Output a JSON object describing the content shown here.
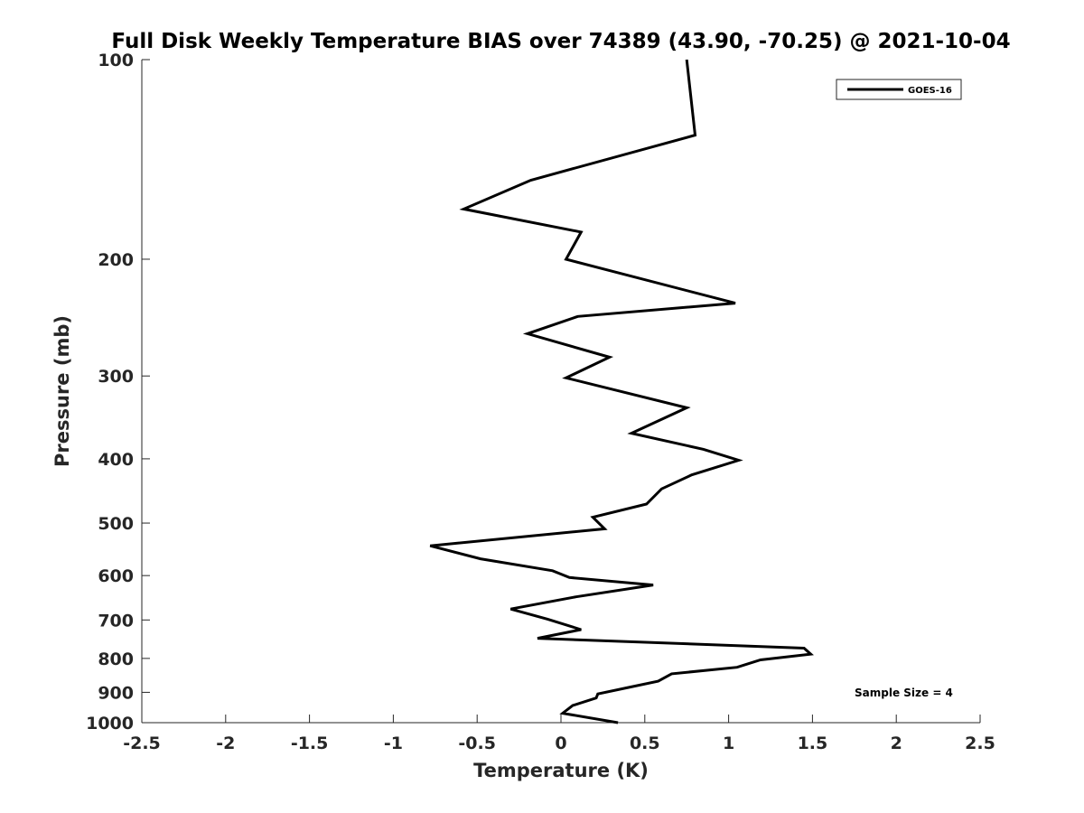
{
  "chart_data": {
    "type": "line",
    "title": "Full Disk Weekly Temperature BIAS over 74389 (43.90, -70.25) @ 2021-10-04",
    "xlabel": "Temperature (K)",
    "ylabel": "Pressure (mb)",
    "xlim": [
      -2.5,
      2.5
    ],
    "ylim": [
      100,
      1000
    ],
    "y_scale": "log",
    "y_reversed": true,
    "xticks": [
      "-2.5",
      "-2",
      "-1.5",
      "-1",
      "-0.5",
      "0",
      "0.5",
      "1",
      "1.5",
      "2",
      "2.5"
    ],
    "yticks": [
      "100",
      "200",
      "300",
      "400",
      "500",
      "600",
      "700",
      "800",
      "900",
      "1000"
    ],
    "grid": false,
    "legend_position": "top-right",
    "series": [
      {
        "name": "GOES-16",
        "color": "#000000",
        "x": [
          0.75,
          0.8,
          -0.18,
          -0.58,
          0.12,
          0.03,
          1.04,
          0.1,
          -0.2,
          0.29,
          0.03,
          0.75,
          0.42,
          0.85,
          1.06,
          0.78,
          0.6,
          0.51,
          0.19,
          0.26,
          -0.78,
          -0.48,
          -0.05,
          0.05,
          0.55,
          0.09,
          -0.3,
          -0.08,
          0.12,
          -0.14,
          1.45,
          1.49,
          1.19,
          1.05,
          0.66,
          0.58,
          0.4,
          0.22,
          0.21,
          0.07,
          0.01,
          0.34
        ],
        "y": [
          100,
          130,
          152,
          168,
          182,
          200,
          233,
          244,
          259,
          281,
          302,
          335,
          366,
          387,
          402,
          423,
          444,
          468,
          490,
          510,
          541,
          566,
          590,
          604,
          620,
          646,
          674,
          698,
          724,
          746,
          772,
          788,
          804,
          825,
          844,
          866,
          885,
          905,
          918,
          942,
          968,
          1000
        ]
      }
    ],
    "annotation": "Sample Size = 4"
  }
}
